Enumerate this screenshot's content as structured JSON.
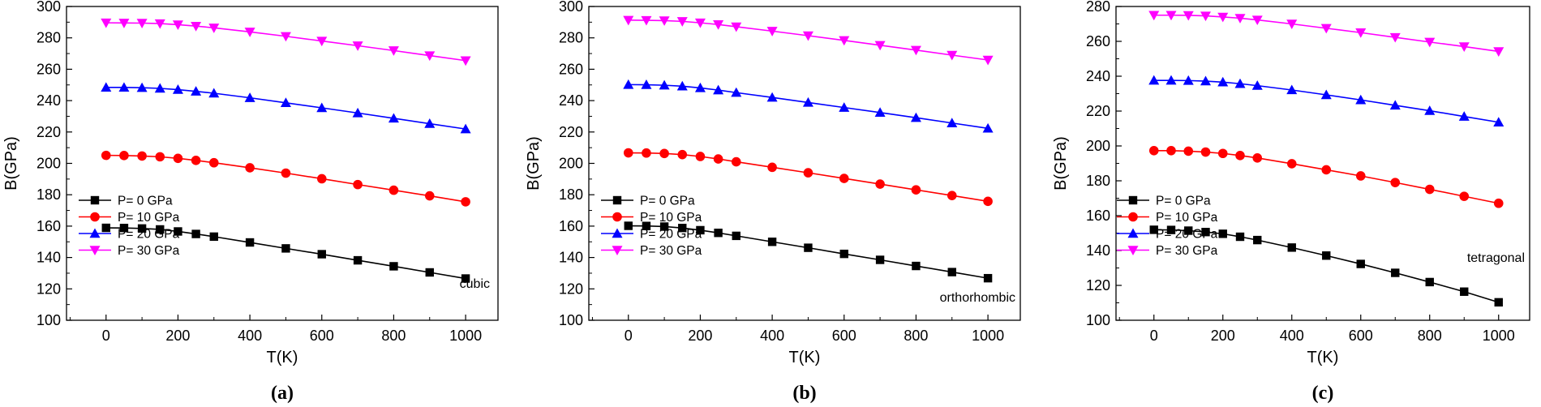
{
  "chart_data": [
    {
      "type": "line",
      "panel_label": "(a)",
      "annotation": "cubic",
      "xlabel": "T(K)",
      "ylabel": "B(GPa)",
      "xlim": [
        -110,
        1090
      ],
      "ylim": [
        100,
        300
      ],
      "xticks": [
        0,
        200,
        400,
        600,
        800,
        1000
      ],
      "yticks": [
        100,
        120,
        140,
        160,
        180,
        200,
        220,
        240,
        260,
        280,
        300
      ],
      "x": [
        0,
        50,
        100,
        150,
        200,
        250,
        300,
        400,
        500,
        600,
        700,
        800,
        900,
        1000
      ],
      "series": [
        {
          "name": "P= 0 GPa",
          "marker": "square",
          "color": "#000000",
          "values": [
            158.9,
            158.8,
            158.5,
            157.9,
            156.6,
            155.0,
            153.3,
            149.6,
            145.8,
            142.1,
            138.2,
            134.4,
            130.5,
            126.6
          ]
        },
        {
          "name": "P= 10 GPa",
          "marker": "circle",
          "color": "#ff0000",
          "values": [
            205.1,
            205.0,
            204.7,
            204.2,
            203.2,
            201.9,
            200.4,
            197.2,
            193.8,
            190.2,
            186.5,
            182.9,
            179.3,
            175.5
          ]
        },
        {
          "name": "P= 20 GPa",
          "marker": "triangle-up",
          "color": "#0000ff",
          "values": [
            248.4,
            248.4,
            248.2,
            247.8,
            247.0,
            245.9,
            244.7,
            241.8,
            238.6,
            235.4,
            232.1,
            228.7,
            225.3,
            221.9
          ]
        },
        {
          "name": "P= 30 GPa",
          "marker": "triangle-down",
          "color": "#ff00ff",
          "values": [
            289.6,
            289.5,
            289.4,
            289.1,
            288.4,
            287.5,
            286.4,
            283.8,
            281.0,
            278.0,
            275.0,
            271.9,
            268.7,
            265.5
          ]
        }
      ]
    },
    {
      "type": "line",
      "panel_label": "(b)",
      "annotation": "orthorhombic",
      "xlabel": "T(K)",
      "ylabel": "B(GPa)",
      "xlim": [
        -110,
        1090
      ],
      "ylim": [
        100,
        300
      ],
      "xticks": [
        0,
        200,
        400,
        600,
        800,
        1000
      ],
      "yticks": [
        100,
        120,
        140,
        160,
        180,
        200,
        220,
        240,
        260,
        280,
        300
      ],
      "x": [
        0,
        50,
        100,
        150,
        200,
        250,
        300,
        400,
        500,
        600,
        700,
        800,
        900,
        1000
      ],
      "series": [
        {
          "name": "P= 0 GPa",
          "marker": "square",
          "color": "#000000",
          "values": [
            160.2,
            160.1,
            159.7,
            158.8,
            157.4,
            155.7,
            153.8,
            150.0,
            146.2,
            142.3,
            138.5,
            134.6,
            130.7,
            126.8
          ]
        },
        {
          "name": "P= 10 GPa",
          "marker": "circle",
          "color": "#ff0000",
          "values": [
            206.7,
            206.6,
            206.3,
            205.6,
            204.4,
            202.8,
            201.0,
            197.5,
            194.0,
            190.4,
            186.8,
            183.1,
            179.5,
            175.8
          ]
        },
        {
          "name": "P= 20 GPa",
          "marker": "triangle-up",
          "color": "#0000ff",
          "values": [
            250.2,
            250.1,
            249.8,
            249.2,
            248.1,
            246.7,
            245.1,
            242.0,
            238.8,
            235.6,
            232.4,
            229.1,
            225.7,
            222.3
          ]
        },
        {
          "name": "P= 30 GPa",
          "marker": "triangle-down",
          "color": "#ff00ff",
          "values": [
            291.3,
            291.2,
            291.0,
            290.5,
            289.6,
            288.5,
            287.1,
            284.3,
            281.4,
            278.4,
            275.3,
            272.2,
            269.0,
            265.9
          ]
        }
      ]
    },
    {
      "type": "line",
      "panel_label": "(c)",
      "annotation": "tetragonal",
      "xlabel": "T(K)",
      "ylabel": "B(GPa)",
      "xlim": [
        -110,
        1090
      ],
      "ylim": [
        100,
        280
      ],
      "xticks": [
        0,
        200,
        400,
        600,
        800,
        1000
      ],
      "yticks": [
        100,
        120,
        140,
        160,
        180,
        200,
        220,
        240,
        260,
        280
      ],
      "x": [
        0,
        50,
        100,
        150,
        200,
        250,
        300,
        400,
        500,
        600,
        700,
        800,
        900,
        1000
      ],
      "series": [
        {
          "name": "P= 0 GPa",
          "marker": "square",
          "color": "#000000",
          "values": [
            151.9,
            151.8,
            151.4,
            150.6,
            149.6,
            147.9,
            146.0,
            141.7,
            137.1,
            132.3,
            127.2,
            121.9,
            116.4,
            110.3
          ]
        },
        {
          "name": "P= 10 GPa",
          "marker": "circle",
          "color": "#ff0000",
          "values": [
            197.3,
            197.3,
            197.0,
            196.5,
            195.7,
            194.5,
            193.1,
            189.8,
            186.3,
            182.8,
            179.0,
            175.1,
            171.1,
            167.1
          ]
        },
        {
          "name": "P= 20 GPa",
          "marker": "triangle-up",
          "color": "#0000ff",
          "values": [
            237.6,
            237.6,
            237.5,
            237.2,
            236.6,
            235.7,
            234.6,
            232.1,
            229.3,
            226.4,
            223.3,
            220.2,
            216.9,
            213.6
          ]
        },
        {
          "name": "P= 30 GPa",
          "marker": "triangle-down",
          "color": "#ff00ff",
          "values": [
            275.0,
            275.0,
            274.9,
            274.6,
            274.0,
            273.3,
            272.3,
            270.0,
            267.5,
            265.0,
            262.3,
            259.6,
            257.0,
            254.2
          ]
        }
      ]
    }
  ]
}
